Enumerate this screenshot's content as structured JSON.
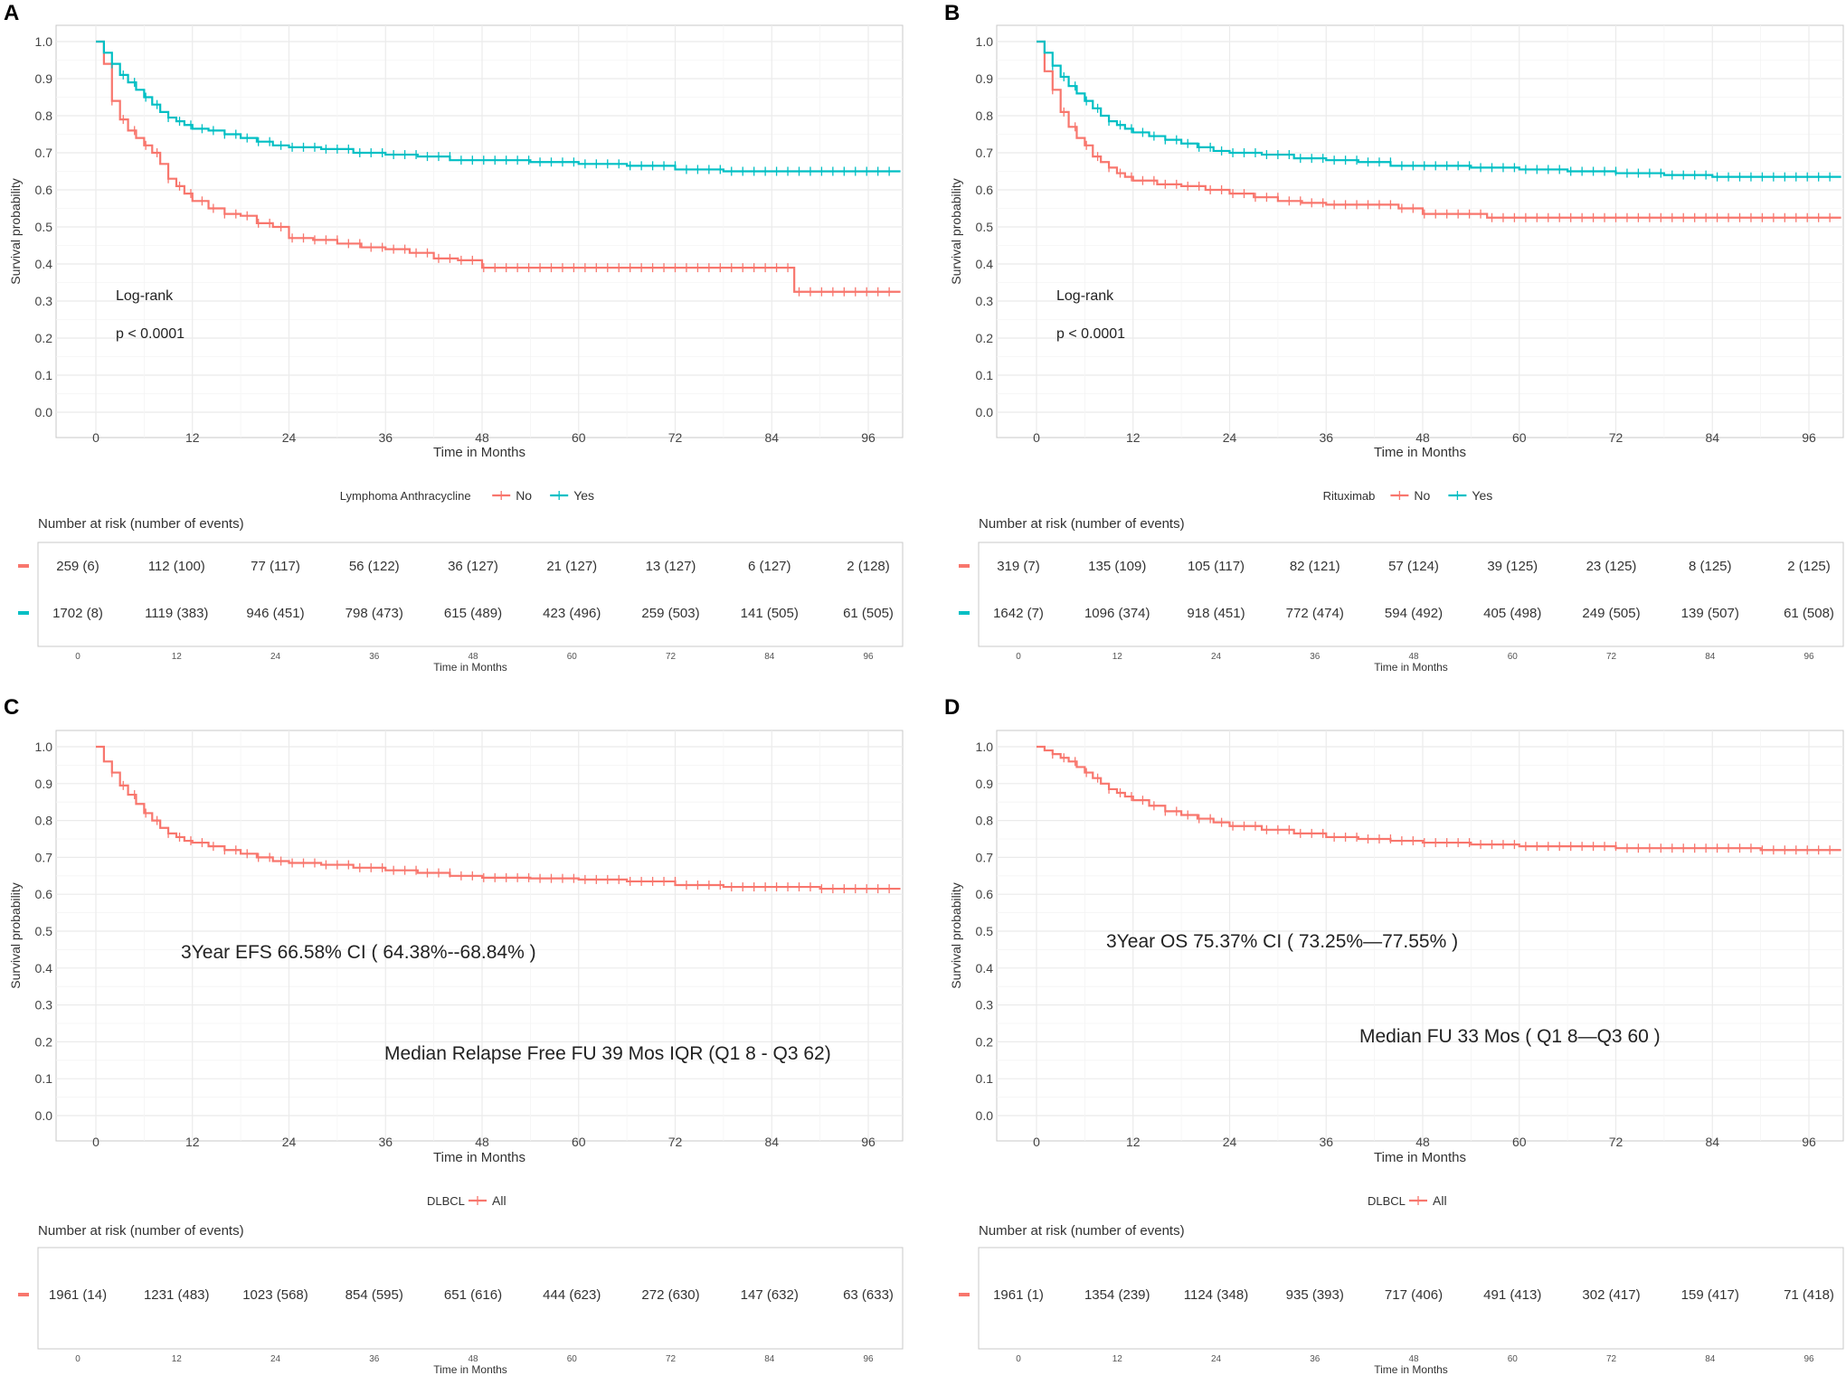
{
  "colors": {
    "no": "#f8766d",
    "yes": "#00bfc4",
    "grid": "#ebebeb",
    "border": "#c8c8c8",
    "text": "#333333"
  },
  "common": {
    "ylabel": "Survival probability",
    "xlabel": "Time in Months",
    "risk_title": "Number at risk (number of events)",
    "xticks": [
      "0",
      "12",
      "24",
      "36",
      "48",
      "60",
      "72",
      "84",
      "96"
    ],
    "yticks": [
      "0.0",
      "0.1",
      "0.2",
      "0.3",
      "0.4",
      "0.5",
      "0.6",
      "0.7",
      "0.8",
      "0.9",
      "1.0"
    ]
  },
  "chart_data": [
    {
      "panel": "A",
      "type": "line",
      "title": "",
      "xlabel": "Time in Months",
      "ylabel": "Survival probability",
      "xlim": [
        0,
        100
      ],
      "ylim": [
        0,
        1
      ],
      "annotations": [
        "Log-rank",
        "p < 0.0001"
      ],
      "legend": {
        "title": "Lymphoma Anthracycline",
        "items": [
          "No",
          "Yes"
        ]
      },
      "series": [
        {
          "name": "No",
          "color": "#f8766d",
          "x": [
            0,
            1,
            2,
            3,
            4,
            5,
            6,
            7,
            8,
            9,
            10,
            11,
            12,
            14,
            16,
            18,
            20,
            22,
            24,
            27,
            30,
            33,
            36,
            39,
            42,
            45,
            48,
            54,
            60,
            66,
            72,
            78,
            84,
            86.8,
            90,
            96,
            100
          ],
          "y": [
            1.0,
            0.94,
            0.84,
            0.79,
            0.76,
            0.74,
            0.72,
            0.7,
            0.67,
            0.63,
            0.61,
            0.59,
            0.57,
            0.55,
            0.535,
            0.53,
            0.51,
            0.5,
            0.47,
            0.465,
            0.455,
            0.445,
            0.44,
            0.43,
            0.415,
            0.41,
            0.39,
            0.39,
            0.39,
            0.39,
            0.39,
            0.39,
            0.39,
            0.325,
            0.325,
            0.325,
            0.325
          ]
        },
        {
          "name": "Yes",
          "color": "#00bfc4",
          "x": [
            0,
            1,
            2,
            3,
            4,
            5,
            6,
            7,
            8,
            9,
            10,
            11,
            12,
            14,
            16,
            18,
            20,
            22,
            24,
            28,
            32,
            36,
            40,
            44,
            48,
            54,
            60,
            66,
            72,
            78,
            84,
            90,
            96,
            100
          ],
          "y": [
            1.0,
            0.97,
            0.94,
            0.91,
            0.89,
            0.87,
            0.85,
            0.83,
            0.81,
            0.795,
            0.785,
            0.775,
            0.765,
            0.76,
            0.75,
            0.74,
            0.73,
            0.72,
            0.715,
            0.71,
            0.7,
            0.695,
            0.69,
            0.68,
            0.68,
            0.675,
            0.67,
            0.665,
            0.655,
            0.65,
            0.65,
            0.65,
            0.65,
            0.65
          ]
        }
      ],
      "risk_table": {
        "rows": [
          {
            "name": "No",
            "color": "#f8766d",
            "values": [
              "259 (6)",
              "112 (100)",
              "77 (117)",
              "56 (122)",
              "36 (127)",
              "21 (127)",
              "13 (127)",
              "6 (127)",
              "2 (128)"
            ]
          },
          {
            "name": "Yes",
            "color": "#00bfc4",
            "values": [
              "1702 (8)",
              "1119 (383)",
              "946 (451)",
              "798 (473)",
              "615 (489)",
              "423 (496)",
              "259 (503)",
              "141 (505)",
              "61 (505)"
            ]
          }
        ]
      }
    },
    {
      "panel": "B",
      "type": "line",
      "title": "",
      "xlabel": "Time in Months",
      "ylabel": "Survival probability",
      "xlim": [
        0,
        100
      ],
      "ylim": [
        0,
        1
      ],
      "annotations": [
        "Log-rank",
        "p < 0.0001"
      ],
      "legend": {
        "title": "Rituximab",
        "items": [
          "No",
          "Yes"
        ]
      },
      "series": [
        {
          "name": "No",
          "color": "#f8766d",
          "x": [
            0,
            1,
            2,
            3,
            4,
            5,
            6,
            7,
            8,
            9,
            10,
            11,
            12,
            15,
            18,
            21,
            24,
            27,
            30,
            33,
            36,
            42,
            45,
            48,
            52,
            56,
            60,
            66,
            72,
            78,
            84,
            90,
            96,
            100
          ],
          "y": [
            1.0,
            0.92,
            0.87,
            0.81,
            0.77,
            0.74,
            0.72,
            0.69,
            0.675,
            0.66,
            0.645,
            0.635,
            0.625,
            0.615,
            0.61,
            0.6,
            0.59,
            0.58,
            0.57,
            0.565,
            0.56,
            0.56,
            0.55,
            0.535,
            0.535,
            0.525,
            0.525,
            0.525,
            0.525,
            0.525,
            0.525,
            0.525,
            0.525,
            0.525
          ]
        },
        {
          "name": "Yes",
          "color": "#00bfc4",
          "x": [
            0,
            1,
            2,
            3,
            4,
            5,
            6,
            7,
            8,
            9,
            10,
            11,
            12,
            14,
            16,
            18,
            20,
            22,
            24,
            28,
            32,
            36,
            40,
            44,
            48,
            54,
            60,
            66,
            72,
            78,
            84,
            90,
            96,
            100
          ],
          "y": [
            1.0,
            0.97,
            0.935,
            0.905,
            0.88,
            0.86,
            0.84,
            0.82,
            0.8,
            0.785,
            0.775,
            0.765,
            0.755,
            0.745,
            0.735,
            0.725,
            0.715,
            0.705,
            0.7,
            0.695,
            0.685,
            0.68,
            0.675,
            0.665,
            0.665,
            0.66,
            0.655,
            0.65,
            0.645,
            0.64,
            0.635,
            0.635,
            0.635,
            0.635
          ]
        }
      ],
      "risk_table": {
        "rows": [
          {
            "name": "No",
            "color": "#f8766d",
            "values": [
              "319 (7)",
              "135 (109)",
              "105 (117)",
              "82 (121)",
              "57 (124)",
              "39 (125)",
              "23 (125)",
              "8 (125)",
              "2 (125)"
            ]
          },
          {
            "name": "Yes",
            "color": "#00bfc4",
            "values": [
              "1642 (7)",
              "1096 (374)",
              "918 (451)",
              "772 (474)",
              "594 (492)",
              "405 (498)",
              "249 (505)",
              "139 (507)",
              "61 (508)"
            ]
          }
        ]
      }
    },
    {
      "panel": "C",
      "type": "line",
      "title": "",
      "xlabel": "Time in Months",
      "ylabel": "Survival probability",
      "xlim": [
        0,
        100
      ],
      "ylim": [
        0,
        1
      ],
      "annotations": [
        "3Year EFS  66.58%     CI ( 64.38%--68.84% )",
        "Median Relapse Free FU  39 Mos   IQR (Q1 8 - Q3 62)"
      ],
      "legend": {
        "title": "DLBCL",
        "items": [
          "All"
        ]
      },
      "series": [
        {
          "name": "All",
          "color": "#f8766d",
          "x": [
            0,
            1,
            2,
            3,
            4,
            5,
            6,
            7,
            8,
            9,
            10,
            11,
            12,
            14,
            16,
            18,
            20,
            22,
            24,
            28,
            32,
            36,
            40,
            44,
            48,
            54,
            60,
            66,
            72,
            78,
            84,
            90,
            96,
            100
          ],
          "y": [
            1.0,
            0.96,
            0.93,
            0.895,
            0.87,
            0.845,
            0.82,
            0.8,
            0.78,
            0.765,
            0.755,
            0.745,
            0.74,
            0.73,
            0.72,
            0.71,
            0.7,
            0.69,
            0.685,
            0.68,
            0.672,
            0.665,
            0.658,
            0.65,
            0.645,
            0.643,
            0.64,
            0.635,
            0.625,
            0.62,
            0.62,
            0.615,
            0.615,
            0.615
          ]
        }
      ],
      "risk_table": {
        "rows": [
          {
            "name": "All",
            "color": "#f8766d",
            "values": [
              "1961 (14)",
              "1231 (483)",
              "1023 (568)",
              "854 (595)",
              "651 (616)",
              "444 (623)",
              "272 (630)",
              "147 (632)",
              "63 (633)"
            ]
          }
        ]
      }
    },
    {
      "panel": "D",
      "type": "line",
      "title": "",
      "xlabel": "Time in Months",
      "ylabel": "Survival probability",
      "xlim": [
        0,
        100
      ],
      "ylim": [
        0,
        1
      ],
      "annotations": [
        "3Year OS  75.37%   CI  ( 73.25%—77.55% )",
        "Median FU  33 Mos   ( Q1  8—Q3  60 )"
      ],
      "legend": {
        "title": "DLBCL",
        "items": [
          "All"
        ]
      },
      "series": [
        {
          "name": "All",
          "color": "#f8766d",
          "x": [
            0,
            1,
            2,
            3,
            4,
            5,
            6,
            7,
            8,
            9,
            10,
            11,
            12,
            14,
            16,
            18,
            20,
            22,
            24,
            28,
            32,
            36,
            40,
            44,
            48,
            54,
            60,
            66,
            72,
            78,
            84,
            90,
            96,
            100
          ],
          "y": [
            1.0,
            0.99,
            0.98,
            0.97,
            0.96,
            0.945,
            0.93,
            0.915,
            0.9,
            0.885,
            0.875,
            0.865,
            0.855,
            0.84,
            0.825,
            0.815,
            0.805,
            0.795,
            0.785,
            0.775,
            0.765,
            0.755,
            0.75,
            0.745,
            0.74,
            0.735,
            0.73,
            0.73,
            0.725,
            0.725,
            0.725,
            0.72,
            0.72,
            0.72
          ]
        }
      ],
      "risk_table": {
        "rows": [
          {
            "name": "All",
            "color": "#f8766d",
            "values": [
              "1961 (1)",
              "1354 (239)",
              "1124 (348)",
              "935 (393)",
              "717 (406)",
              "491 (413)",
              "302 (417)",
              "159 (417)",
              "71 (418)"
            ]
          }
        ]
      }
    }
  ]
}
